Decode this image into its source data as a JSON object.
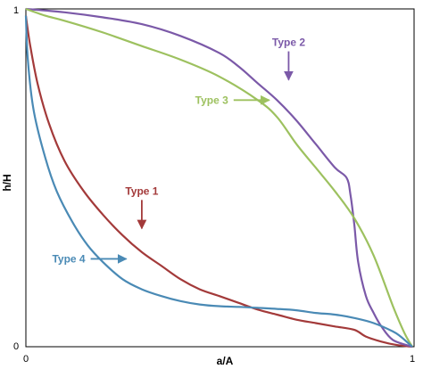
{
  "chart_data": {
    "type": "line",
    "title": "",
    "xlabel": "a/A",
    "ylabel": "h/H",
    "xlim": [
      0,
      1
    ],
    "ylim": [
      0,
      1
    ],
    "grid": false,
    "x_ticks": [
      "0",
      "1"
    ],
    "y_ticks": [
      "0",
      "1"
    ],
    "series": [
      {
        "name": "Type 1",
        "color": "#a33a3a",
        "points": [
          [
            0,
            0.98
          ],
          [
            0.01,
            0.9
          ],
          [
            0.03,
            0.78
          ],
          [
            0.06,
            0.66
          ],
          [
            0.1,
            0.55
          ],
          [
            0.15,
            0.46
          ],
          [
            0.2,
            0.39
          ],
          [
            0.25,
            0.33
          ],
          [
            0.3,
            0.28
          ],
          [
            0.35,
            0.24
          ],
          [
            0.4,
            0.2
          ],
          [
            0.45,
            0.17
          ],
          [
            0.5,
            0.15
          ],
          [
            0.55,
            0.13
          ],
          [
            0.6,
            0.11
          ],
          [
            0.65,
            0.095
          ],
          [
            0.7,
            0.08
          ],
          [
            0.75,
            0.07
          ],
          [
            0.8,
            0.06
          ],
          [
            0.85,
            0.05
          ],
          [
            0.88,
            0.03
          ],
          [
            0.92,
            0.015
          ],
          [
            0.96,
            0.005
          ],
          [
            1,
            0
          ]
        ]
      },
      {
        "name": "Type 2",
        "color": "#7b59a8",
        "points": [
          [
            0,
            1
          ],
          [
            0.1,
            0.99
          ],
          [
            0.2,
            0.975
          ],
          [
            0.3,
            0.955
          ],
          [
            0.4,
            0.92
          ],
          [
            0.5,
            0.87
          ],
          [
            0.55,
            0.83
          ],
          [
            0.6,
            0.78
          ],
          [
            0.65,
            0.73
          ],
          [
            0.7,
            0.67
          ],
          [
            0.75,
            0.6
          ],
          [
            0.8,
            0.53
          ],
          [
            0.83,
            0.5
          ],
          [
            0.84,
            0.45
          ],
          [
            0.85,
            0.36
          ],
          [
            0.86,
            0.25
          ],
          [
            0.88,
            0.15
          ],
          [
            0.9,
            0.1
          ],
          [
            0.92,
            0.06
          ],
          [
            0.95,
            0.02
          ],
          [
            1,
            0
          ]
        ]
      },
      {
        "name": "Type 3",
        "color": "#9dc15f",
        "points": [
          [
            0,
            1
          ],
          [
            0.05,
            0.98
          ],
          [
            0.1,
            0.965
          ],
          [
            0.2,
            0.93
          ],
          [
            0.3,
            0.89
          ],
          [
            0.4,
            0.85
          ],
          [
            0.5,
            0.8
          ],
          [
            0.6,
            0.73
          ],
          [
            0.65,
            0.68
          ],
          [
            0.7,
            0.6
          ],
          [
            0.75,
            0.53
          ],
          [
            0.8,
            0.46
          ],
          [
            0.85,
            0.38
          ],
          [
            0.9,
            0.27
          ],
          [
            0.95,
            0.12
          ],
          [
            0.98,
            0.04
          ],
          [
            1,
            0
          ]
        ]
      },
      {
        "name": "Type 4",
        "color": "#4a8ab5",
        "points": [
          [
            0,
            0.98
          ],
          [
            0.005,
            0.85
          ],
          [
            0.02,
            0.7
          ],
          [
            0.05,
            0.56
          ],
          [
            0.08,
            0.46
          ],
          [
            0.12,
            0.37
          ],
          [
            0.16,
            0.3
          ],
          [
            0.2,
            0.25
          ],
          [
            0.25,
            0.2
          ],
          [
            0.3,
            0.17
          ],
          [
            0.35,
            0.15
          ],
          [
            0.4,
            0.135
          ],
          [
            0.45,
            0.125
          ],
          [
            0.5,
            0.12
          ],
          [
            0.55,
            0.118
          ],
          [
            0.6,
            0.115
          ],
          [
            0.65,
            0.112
          ],
          [
            0.7,
            0.108
          ],
          [
            0.75,
            0.1
          ],
          [
            0.8,
            0.095
          ],
          [
            0.85,
            0.085
          ],
          [
            0.9,
            0.07
          ],
          [
            0.95,
            0.045
          ],
          [
            0.97,
            0.03
          ],
          [
            1,
            0
          ]
        ]
      }
    ],
    "annotations": [
      {
        "text": "Type 1",
        "color": "#a33a3a",
        "arrow_to": [
          0.3,
          0.35
        ],
        "direction": "down"
      },
      {
        "text": "Type 2",
        "color": "#7b59a8",
        "arrow_to": [
          0.68,
          0.79
        ],
        "direction": "down"
      },
      {
        "text": "Type 3",
        "color": "#9dc15f",
        "arrow_to": [
          0.63,
          0.73
        ],
        "direction": "right"
      },
      {
        "text": "Type 4",
        "color": "#4a8ab5",
        "arrow_to": [
          0.26,
          0.26
        ],
        "direction": "right"
      }
    ]
  }
}
